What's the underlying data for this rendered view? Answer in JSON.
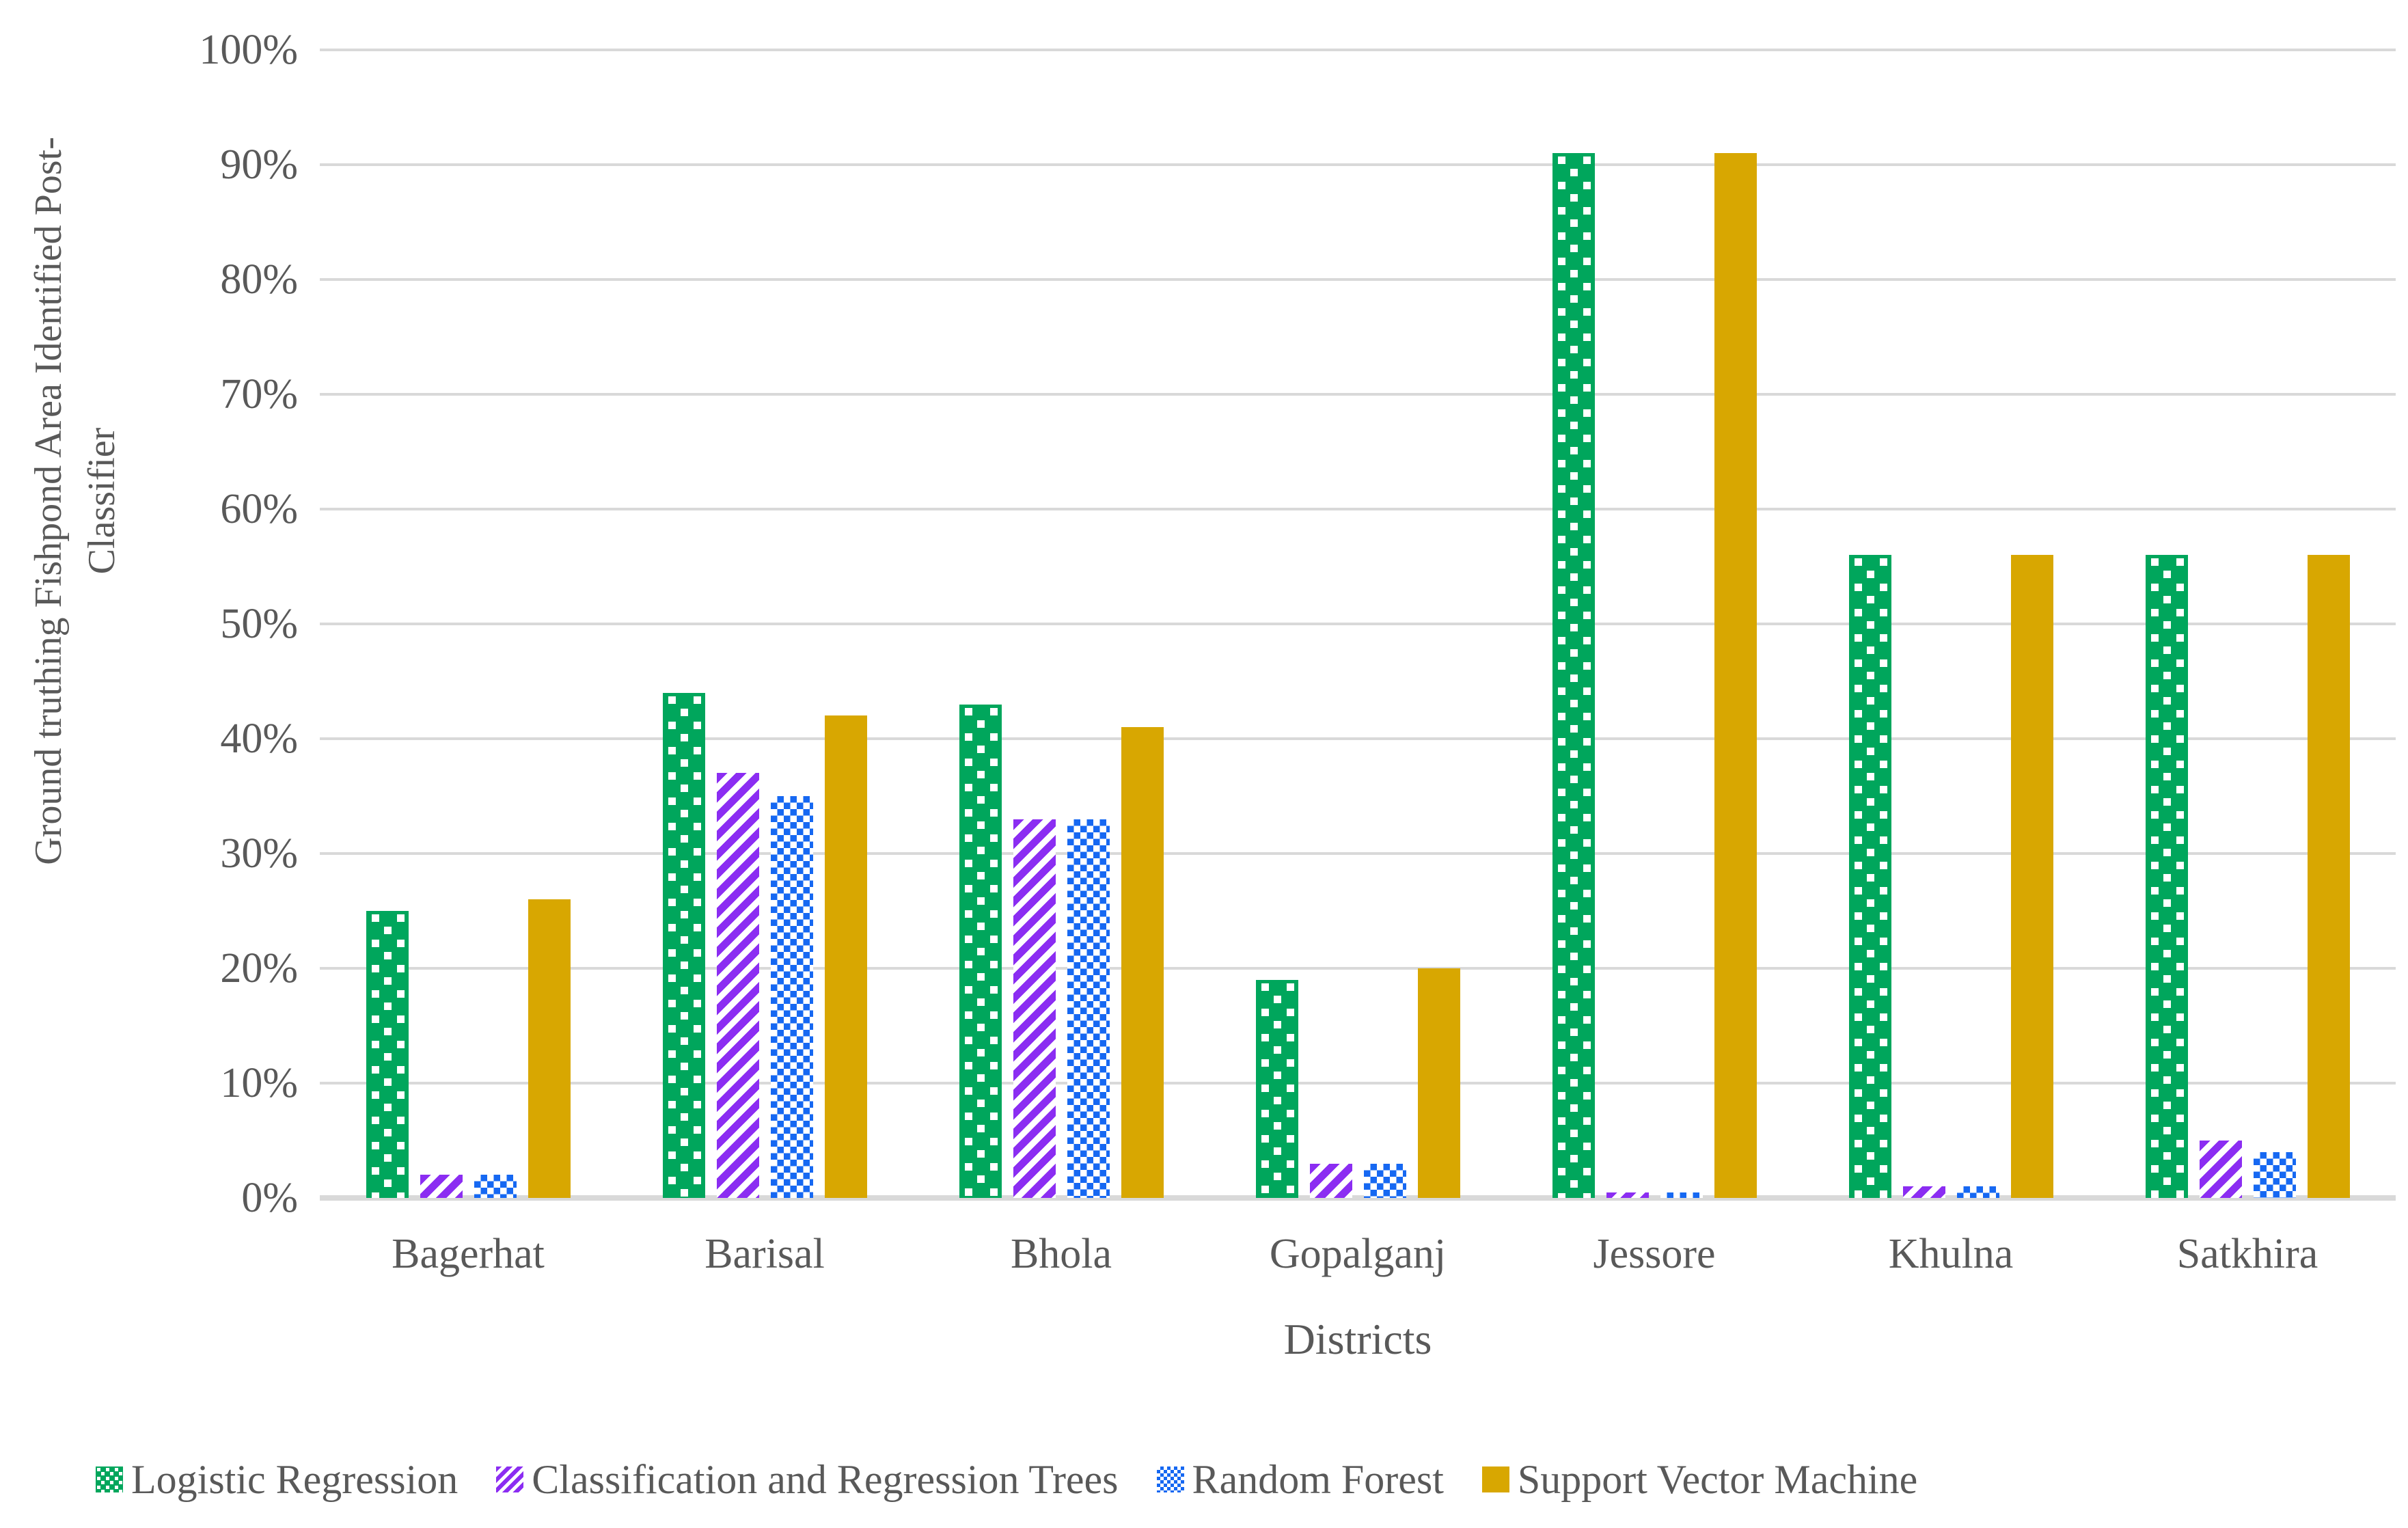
{
  "chart_data": {
    "type": "bar",
    "categories": [
      "Bagerhat",
      "Barisal",
      "Bhola",
      "Gopalganj",
      "Jessore",
      "Khulna",
      "Satkhira"
    ],
    "series": [
      {
        "name": "Logistic Regression",
        "color": "#00a65c",
        "pattern": "dots",
        "values": [
          25,
          44,
          43,
          19,
          91,
          56,
          56
        ]
      },
      {
        "name": "Classification and Regression Trees",
        "color": "#8b2df2",
        "pattern": "diagonal-stripes",
        "values": [
          2,
          37,
          33,
          3,
          0.5,
          1,
          5
        ]
      },
      {
        "name": "Random Forest",
        "color": "#1668f2",
        "pattern": "checker",
        "values": [
          2,
          35,
          33,
          3,
          0.5,
          1,
          4
        ]
      },
      {
        "name": "Support Vector Machine",
        "color": "#d8a701",
        "pattern": "solid",
        "values": [
          26,
          42,
          41,
          20,
          91,
          56,
          56
        ]
      }
    ],
    "xlabel": "Districts",
    "ylabel_line1": "Ground truthing  Fishpond Area Identified Post-",
    "ylabel_line2": "Classifier",
    "ylim": [
      0,
      100
    ],
    "ytick_step": 10,
    "ytick_labels": [
      "0%",
      "10%",
      "20%",
      "30%",
      "40%",
      "50%",
      "60%",
      "70%",
      "80%",
      "90%",
      "100%"
    ],
    "grid": true,
    "legend_position": "bottom",
    "gridline_color": "#d9d9d9",
    "text_color": "#595959"
  }
}
